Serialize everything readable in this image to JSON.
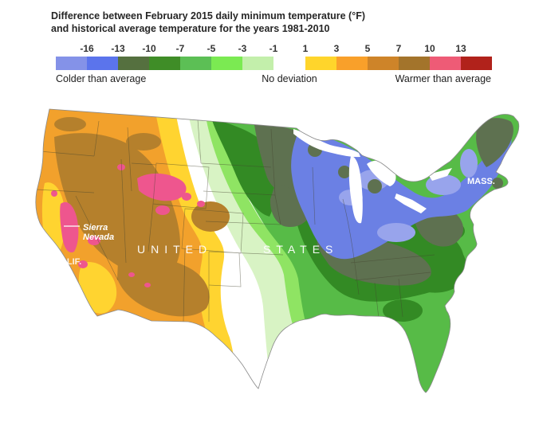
{
  "title": {
    "line1": "Difference between February 2015 daily minimum temperature (°F)",
    "line2": "and historical average temperature for the years 1981-2010"
  },
  "legend": {
    "left": {
      "ticks": [
        "-16",
        "-13",
        "-10",
        "-7",
        "-5",
        "-3",
        "-1"
      ],
      "colors": [
        "#8492e8",
        "#5b74ec",
        "#55703f",
        "#3f8d27",
        "#5cbf55",
        "#7bea52",
        "#c3efab"
      ]
    },
    "right": {
      "ticks": [
        "1",
        "3",
        "5",
        "7",
        "10",
        "13"
      ],
      "colors": [
        "#ffd52b",
        "#f9a02a",
        "#ce8429",
        "#a3742b",
        "#ee5b76",
        "#b1221b"
      ]
    },
    "captions": {
      "colder": "Colder than average",
      "none": "No deviation",
      "warmer": "Warmer than average"
    }
  },
  "map": {
    "labels": {
      "country_1": "UNITED",
      "country_2": "STATES",
      "range_line1": "Sierra",
      "range_line2": "Nevada",
      "calif": "CALIF.",
      "mass": "MASS."
    }
  },
  "palette": {
    "ocean": "#ffffff",
    "orange": "#f2a12c",
    "yellow": "#ffd430",
    "brown": "#b5802c",
    "pink": "#ee568e",
    "pale_green": "#d8f3c4",
    "light_green": "#8fe463",
    "medium_green": "#57bb47",
    "dark_green": "#338a24",
    "olive": "#5e7150",
    "blue": "#6b80e4",
    "periwinkle": "#98a4ec",
    "coast_stroke": "#8a8a8a",
    "state_border": "#44442f",
    "water": "#ffffff",
    "label": "#ffffff"
  }
}
